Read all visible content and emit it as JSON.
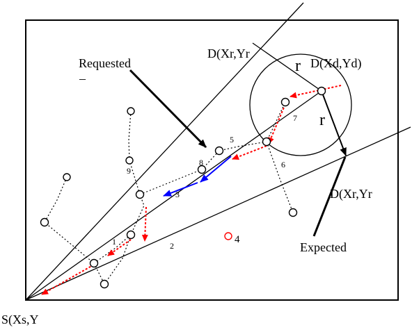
{
  "labels": {
    "source": "S(Xs,Y",
    "dest_upper": "D(Xr,Yr",
    "dest_center": "D(Xd,Yd)",
    "dest_lower": "D(Xr,Yr",
    "radius_upper": "r",
    "radius_lower": "r",
    "requested": "Requested",
    "requested_mark": "–",
    "expected": "Expected"
  },
  "node_labels": {
    "n1": "1",
    "n2": "2",
    "n3": "3",
    "n4": "4",
    "n5": "5",
    "n6": "6",
    "n7": "7",
    "n8": "8",
    "n9": "9"
  },
  "colors": {
    "line": "#000000",
    "route_red": "#ff0000",
    "route_blue": "#0000ff",
    "highlight_node": "#ff0000"
  }
}
